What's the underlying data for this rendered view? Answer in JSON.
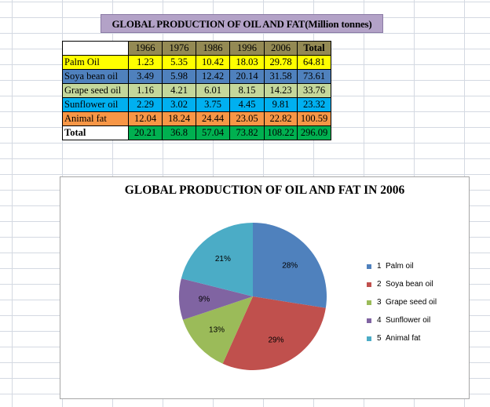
{
  "table": {
    "title": "GLOBAL PRODUCTION OF OIL AND FAT(Million tonnes)",
    "columns": [
      "1966",
      "1976",
      "1986",
      "1996",
      "2006",
      "Total"
    ],
    "rows": [
      {
        "label": "Palm Oil",
        "values": [
          "1.23",
          "5.35",
          "10.42",
          "18.03",
          "29.78",
          "64.81"
        ],
        "bg": "#ffff00",
        "fg": "#000000"
      },
      {
        "label": "Soya bean oil",
        "values": [
          "3.49",
          "5.98",
          "12.42",
          "20.14",
          "31.58",
          "73.61"
        ],
        "bg": "#4f81bd",
        "fg": "#000000"
      },
      {
        "label": "Grape seed oil",
        "values": [
          "1.16",
          "4.21",
          "6.01",
          "8.15",
          "14.23",
          "33.76"
        ],
        "bg": "#c4d79b",
        "fg": "#000000"
      },
      {
        "label": "Sunflower oil",
        "values": [
          "2.29",
          "3.02",
          "3.75",
          "4.45",
          "9.81",
          "23.32"
        ],
        "bg": "#00b0f0",
        "fg": "#000000"
      },
      {
        "label": "Animal fat",
        "values": [
          "12.04",
          "18.24",
          "24.44",
          "23.05",
          "22.82",
          "100.59"
        ],
        "bg": "#f79646",
        "fg": "#000000"
      },
      {
        "label": "Total",
        "values": [
          "20.21",
          "36.8",
          "57.04",
          "73.82",
          "108.22",
          "296.09"
        ],
        "bg": "#00b050",
        "fg": "#000000",
        "label_bg": "#ffffff",
        "bold_label": true
      }
    ],
    "header_bg": "#948a54"
  },
  "chart_data": {
    "type": "pie",
    "title": "GLOBAL PRODUCTION OF OIL AND FAT IN 2006",
    "categories": [
      "Palm oil",
      "Soya bean oil",
      "Grape seed oil",
      "Sunflower oil",
      "Animal fat"
    ],
    "legend_numbers": [
      "1",
      "2",
      "3",
      "4",
      "5"
    ],
    "values": [
      29.78,
      31.58,
      14.23,
      9.81,
      22.82
    ],
    "data_labels": [
      "28%",
      "29%",
      "13%",
      "9%",
      "21%"
    ],
    "colors": [
      "#4f81bd",
      "#c0504d",
      "#9bbb59",
      "#8064a2",
      "#4bacc6"
    ],
    "legend_position": "right",
    "start_angle_deg": 0,
    "direction": "clockwise"
  }
}
